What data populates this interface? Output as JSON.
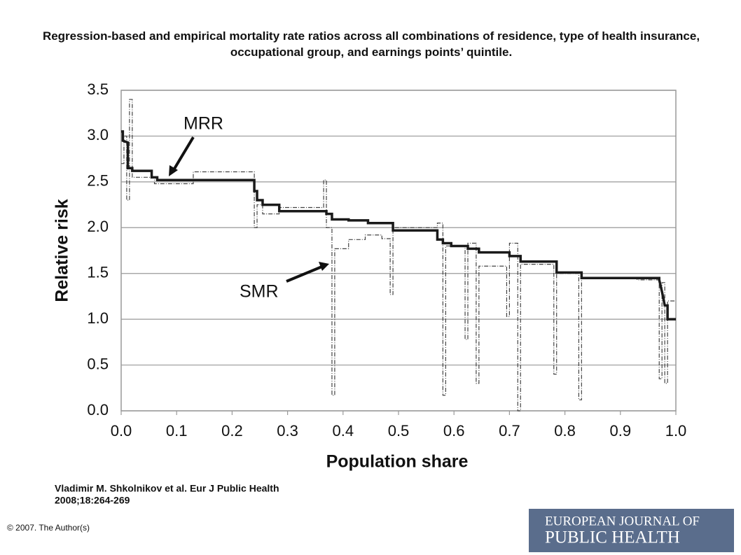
{
  "chart_data": {
    "type": "line",
    "title": "Regression-based and empirical mortality rate ratios across all combinations of residence, type of health insurance, occupational group, and earnings points’ quintile.",
    "x_label": "Population share",
    "y_label": "Relative risk",
    "xlim": [
      0,
      1
    ],
    "ylim": [
      0,
      3.5
    ],
    "xticks": [
      {
        "value": 0,
        "label": "0.0"
      },
      0.1,
      0.2,
      0.3,
      0.4,
      0.5,
      0.6,
      0.7,
      0.8,
      0.9,
      {
        "value": 1,
        "label": "1.0"
      }
    ],
    "yticks": [
      {
        "value": 0,
        "label": "0.0"
      },
      0.5,
      {
        "value": 1,
        "label": "1.0"
      },
      1.5,
      {
        "value": 2,
        "label": "2.0"
      },
      2.5,
      {
        "value": 3,
        "label": "3.0"
      },
      3.5
    ],
    "grid": true,
    "series": [
      {
        "name": "MRR",
        "color": "#1a1a1a",
        "x": [
          0,
          0.003,
          0.003,
          0.012,
          0.012,
          0.02,
          0.02,
          0.055,
          0.055,
          0.065,
          0.065,
          0.24,
          0.24,
          0.245,
          0.245,
          0.255,
          0.255,
          0.285,
          0.285,
          0.37,
          0.37,
          0.38,
          0.38,
          0.41,
          0.41,
          0.445,
          0.445,
          0.49,
          0.49,
          0.57,
          0.57,
          0.58,
          0.58,
          0.595,
          0.595,
          0.625,
          0.625,
          0.645,
          0.645,
          0.7,
          0.7,
          0.72,
          0.72,
          0.785,
          0.785,
          0.83,
          0.83,
          0.97,
          0.97,
          0.975,
          0.98,
          0.985,
          0.985,
          1.0
        ],
        "values": [
          3.05,
          3.05,
          2.95,
          2.93,
          2.65,
          2.65,
          2.62,
          2.62,
          2.55,
          2.55,
          2.52,
          2.52,
          2.4,
          2.4,
          2.3,
          2.3,
          2.25,
          2.25,
          2.18,
          2.18,
          2.15,
          2.15,
          2.09,
          2.09,
          2.08,
          2.08,
          2.05,
          2.05,
          1.97,
          1.97,
          1.87,
          1.87,
          1.83,
          1.83,
          1.8,
          1.8,
          1.77,
          1.77,
          1.73,
          1.73,
          1.69,
          1.69,
          1.63,
          1.63,
          1.51,
          1.51,
          1.45,
          1.45,
          1.43,
          1.3,
          1.15,
          1.15,
          1.0,
          1.0
        ]
      },
      {
        "name": "SMR",
        "color": "#444444",
        "x": [
          0,
          0.005,
          0.005,
          0.01,
          0.01,
          0.015,
          0.015,
          0.02,
          0.02,
          0.06,
          0.06,
          0.13,
          0.13,
          0.24,
          0.24,
          0.245,
          0.245,
          0.255,
          0.255,
          0.285,
          0.285,
          0.365,
          0.365,
          0.37,
          0.37,
          0.38,
          0.38,
          0.385,
          0.385,
          0.41,
          0.41,
          0.44,
          0.44,
          0.47,
          0.47,
          0.485,
          0.485,
          0.49,
          0.49,
          0.57,
          0.57,
          0.58,
          0.58,
          0.585,
          0.585,
          0.62,
          0.62,
          0.625,
          0.625,
          0.64,
          0.64,
          0.645,
          0.645,
          0.695,
          0.695,
          0.7,
          0.7,
          0.715,
          0.715,
          0.72,
          0.72,
          0.78,
          0.78,
          0.785,
          0.785,
          0.825,
          0.825,
          0.83,
          0.83,
          0.93,
          0.93,
          0.97,
          0.97,
          0.975,
          0.975,
          0.98,
          0.98,
          0.985,
          0.985,
          1.0
        ],
        "values": [
          2.7,
          2.7,
          3.0,
          3.0,
          2.3,
          2.3,
          3.4,
          3.4,
          2.55,
          2.55,
          2.48,
          2.48,
          2.61,
          2.61,
          2.0,
          2.0,
          2.25,
          2.25,
          2.15,
          2.15,
          2.22,
          2.22,
          2.52,
          2.52,
          2.0,
          2.0,
          0.17,
          0.17,
          1.77,
          1.77,
          1.87,
          1.87,
          1.92,
          1.92,
          1.88,
          1.88,
          1.27,
          1.27,
          2.0,
          2.0,
          2.05,
          2.05,
          0.17,
          0.17,
          1.8,
          1.8,
          0.78,
          0.78,
          1.83,
          1.83,
          0.3,
          0.3,
          1.58,
          1.58,
          1.03,
          1.03,
          1.83,
          1.83,
          0,
          0,
          1.6,
          1.6,
          0.4,
          0.4,
          1.5,
          1.5,
          0.12,
          0.12,
          1.45,
          1.45,
          1.43,
          1.43,
          0.35,
          0.35,
          1.4,
          1.4,
          0.3,
          0.3,
          1.2,
          1.2
        ]
      }
    ]
  },
  "citation": [
    "Vladimir M. Shkolnikov et al. Eur J Public Health",
    "2008;18:264-269"
  ],
  "copyright": "© 2007. The Author(s)",
  "logo": [
    "EUROPEAN JOURNAL OF",
    "PUBLIC HEALTH"
  ]
}
